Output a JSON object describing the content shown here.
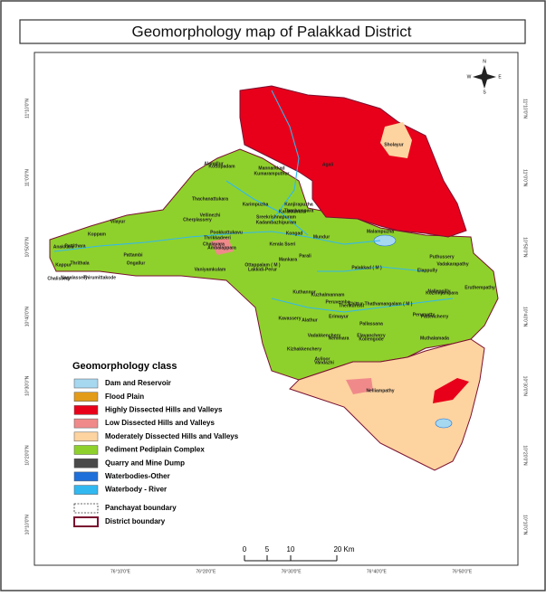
{
  "header": {
    "title": "Geomorphology map of  Palakkad District"
  },
  "legend": {
    "title": "Geomorphology class",
    "items": [
      {
        "label": "Dam and Reservoir",
        "color": "#a6d8f0"
      },
      {
        "label": "Flood Plain",
        "color": "#e39b1a"
      },
      {
        "label": "Highly Dissected Hills and Valleys",
        "color": "#e8001a"
      },
      {
        "label": "Low Dissected Hills and Valleys",
        "color": "#f08a8a"
      },
      {
        "label": "Moderately Dissected Hills and Valleys",
        "color": "#fdd3a0"
      },
      {
        "label": "Pediment Pediplain Complex",
        "color": "#8fd12c"
      },
      {
        "label": "Quarry and Mine Dump",
        "color": "#4a4a4a"
      },
      {
        "label": "Waterbodies-Other",
        "color": "#1e6fd9"
      },
      {
        "label": "Waterbody - River",
        "color": "#31b8f0"
      }
    ],
    "boundaries": [
      {
        "label": "Panchayat boundary"
      },
      {
        "label": "District boundary"
      }
    ]
  },
  "scale": {
    "labels": [
      "0",
      "5",
      "10",
      "20 Km"
    ]
  },
  "compass": {
    "n": "N",
    "s": "S",
    "e": "E",
    "w": "W"
  },
  "longitudes": [
    "76°10'0\"E",
    "76°20'0\"E",
    "76°30'0\"E",
    "76°40'0\"E",
    "76°50'0\"E"
  ],
  "latitudes": [
    "11°10'0\"N",
    "11°0'0\"N",
    "10°50'0\"N",
    "10°40'0\"N",
    "10°30'0\"N",
    "10°20'0\"N",
    "10°10'0\"N"
  ],
  "places": [
    "Alanallur",
    "Kottopadam",
    "Mannarkkad",
    "Kumaramputhur",
    "Agali",
    "Sholayur",
    "Thachanattukara",
    "Karimpuzha",
    "Kanjirapuzha",
    "Thachampara",
    "Sreekrishnapuram",
    "Kadambazhipuram",
    "Karakkurissi",
    "Kongad",
    "Mundur",
    "Cherplassery",
    "Ottappalam ( M )",
    "Ambalappara",
    "Chalavara",
    "Vellinezhi",
    "Pookkottukavu",
    "Thrikkadeeri",
    "Vaniyamkulam",
    "Lakkidi-Perur",
    "Mankara",
    "Parali",
    "Kerala Sseri",
    "Pattambi",
    "Thirumittakode",
    "Thrithala",
    "Kappur",
    "Anakkara",
    "Pattithara",
    "Chalissery",
    "Nagalassery",
    "Vilayur",
    "Koppam",
    "Ongallur",
    "Palakkad ( M )",
    "Malampuzha",
    "Puthussery",
    "Elappully",
    "Vadakarapathy",
    "Peruvemba",
    "Kuthannur",
    "Kuzhalmannam",
    "Thenkurissi",
    "Alathur",
    "Kavassery",
    "Vadakkenchery",
    "Kizhakkenchery",
    "Nemmara",
    "Elavancherry",
    "Kollengode",
    "Muthalamada",
    "Nelliampathy",
    "Ayiloor",
    "Vandazhi",
    "Pallassana",
    "Erimayur",
    "Chittur-Thathamangalam ( M )",
    "Pattencherry",
    "Kozhinjampara",
    "Eruthempathy",
    "Nalleppilly",
    "Perumatty"
  ]
}
